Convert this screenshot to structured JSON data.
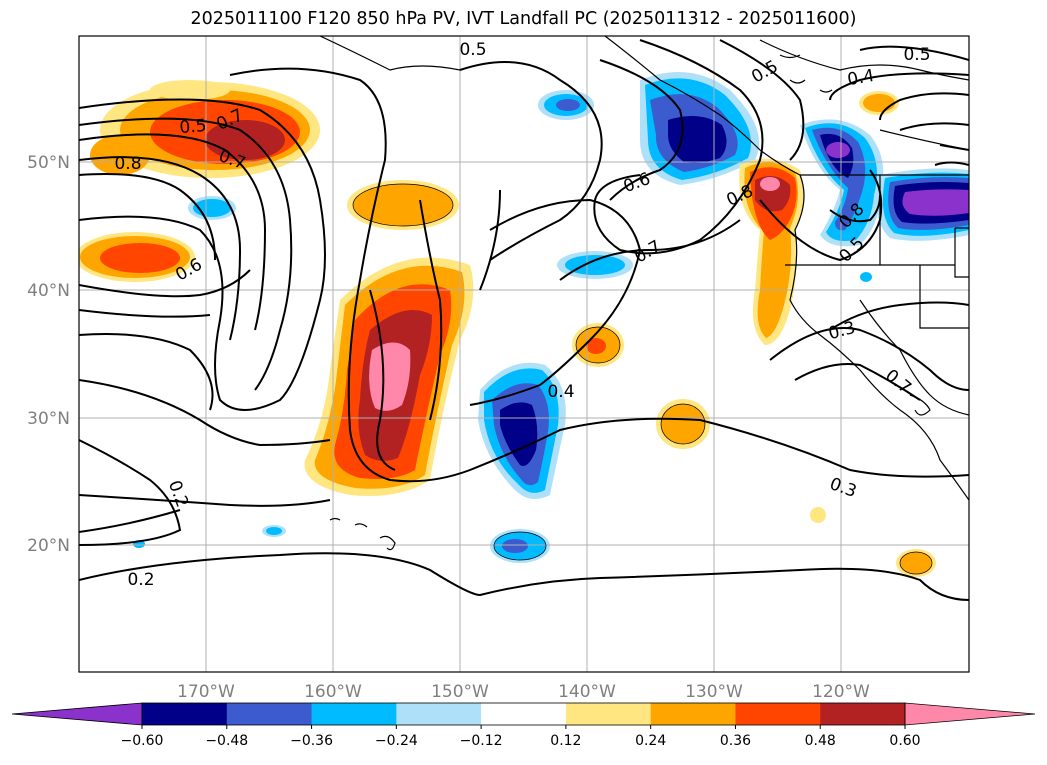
{
  "title": "2025011100 F120 850 hPa PV, IVT Landfall PC (2025011312 - 2025011600)",
  "map": {
    "lon_labels": [
      "170°W",
      "160°W",
      "150°W",
      "140°W",
      "130°W",
      "120°W"
    ],
    "lat_labels": [
      "50°N",
      "40°N",
      "30°N",
      "20°N"
    ],
    "contour_labels": [
      {
        "text": "0.5"
      },
      {
        "text": "0.5"
      },
      {
        "text": "0.5"
      },
      {
        "text": "0.4"
      },
      {
        "text": "0.5"
      },
      {
        "text": "0.7"
      },
      {
        "text": "0.7"
      },
      {
        "text": "0.8"
      },
      {
        "text": "0.6"
      },
      {
        "text": "0.6"
      },
      {
        "text": "0.7"
      },
      {
        "text": "0.8"
      },
      {
        "text": "0.8"
      },
      {
        "text": "0.5"
      },
      {
        "text": "0.3"
      },
      {
        "text": "0.7"
      },
      {
        "text": "0.4"
      },
      {
        "text": "0.3"
      },
      {
        "text": "0.2"
      },
      {
        "text": "0.2"
      }
    ],
    "land_color": "#ffffff",
    "gridline_color": "#b0b0b0"
  },
  "colorbar": {
    "ticks": [
      "−0.60",
      "−0.48",
      "−0.36",
      "−0.24",
      "−0.12",
      "0.12",
      "0.24",
      "0.36",
      "0.48",
      "0.60"
    ],
    "colors": [
      "#8b32cd",
      "#000088",
      "#3b5bcf",
      "#00bbff",
      "#aee1f9",
      "#ffffff",
      "#ffe680",
      "#ffa500",
      "#ff4500",
      "#b22222",
      "#ff88aa"
    ]
  }
}
